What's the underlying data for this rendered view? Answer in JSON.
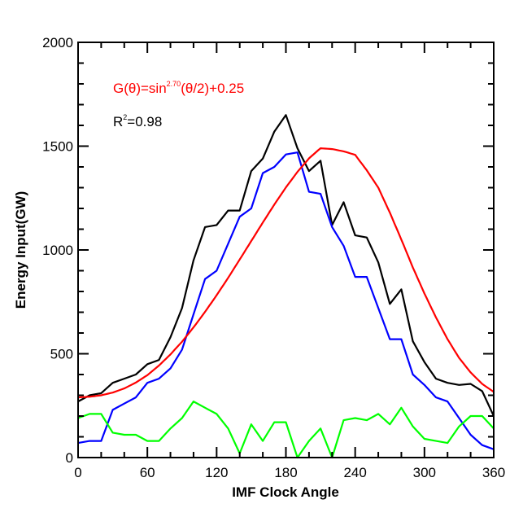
{
  "chart_data": {
    "type": "line",
    "xlabel": "IMF Clock Angle",
    "ylabel": "Energy Input(GW)",
    "xlim": [
      0,
      360
    ],
    "ylim": [
      0,
      2000
    ],
    "xticks": [
      0,
      60,
      120,
      180,
      240,
      300,
      360
    ],
    "yticks": [
      0,
      500,
      1000,
      1500,
      2000
    ],
    "grid": false,
    "annotations": {
      "formula": {
        "prefix": "G(θ)=sin",
        "exponent": "2.70",
        "suffix": "(θ/2)+0.25",
        "color": "#ff0000"
      },
      "r2": {
        "prefix": "R",
        "exponent": "2",
        "suffix": "=0.98",
        "color": "#000000"
      }
    },
    "x": [
      0,
      10,
      20,
      30,
      40,
      50,
      60,
      70,
      80,
      90,
      100,
      110,
      120,
      130,
      140,
      150,
      160,
      170,
      180,
      190,
      200,
      210,
      220,
      230,
      240,
      250,
      260,
      270,
      280,
      290,
      300,
      310,
      320,
      330,
      340,
      350,
      360
    ],
    "series": [
      {
        "color": "#000000",
        "values": [
          270,
          300,
          310,
          360,
          380,
          400,
          450,
          470,
          580,
          720,
          950,
          1110,
          1120,
          1190,
          1190,
          1380,
          1440,
          1570,
          1650,
          1490,
          1380,
          1430,
          1120,
          1230,
          1070,
          1060,
          940,
          740,
          810,
          560,
          460,
          380,
          360,
          350,
          355,
          320,
          200
        ]
      },
      {
        "color": "#0000ff",
        "values": [
          70,
          80,
          80,
          230,
          260,
          290,
          360,
          380,
          430,
          520,
          690,
          860,
          900,
          1030,
          1160,
          1200,
          1370,
          1400,
          1460,
          1470,
          1280,
          1270,
          1110,
          1020,
          870,
          870,
          720,
          570,
          570,
          400,
          350,
          290,
          270,
          190,
          110,
          60,
          40
        ]
      },
      {
        "color": "#00ff00",
        "values": [
          190,
          210,
          210,
          120,
          110,
          110,
          80,
          80,
          140,
          190,
          270,
          240,
          210,
          140,
          20,
          160,
          80,
          170,
          170,
          0,
          80,
          140,
          0,
          180,
          190,
          180,
          210,
          160,
          240,
          150,
          90,
          80,
          70,
          150,
          200,
          200,
          140
        ]
      },
      {
        "color": "#ff0000",
        "fit": true,
        "values": [
          290,
          293,
          300,
          313,
          333,
          361,
          397,
          443,
          497,
          558,
          627,
          702,
          782,
          866,
          954,
          1043,
          1132,
          1219,
          1301,
          1376,
          1441,
          1490,
          1486,
          1475,
          1458,
          1384,
          1300,
          1180,
          1050,
          915,
          790,
          675,
          570,
          480,
          410,
          355,
          316
        ]
      }
    ]
  }
}
